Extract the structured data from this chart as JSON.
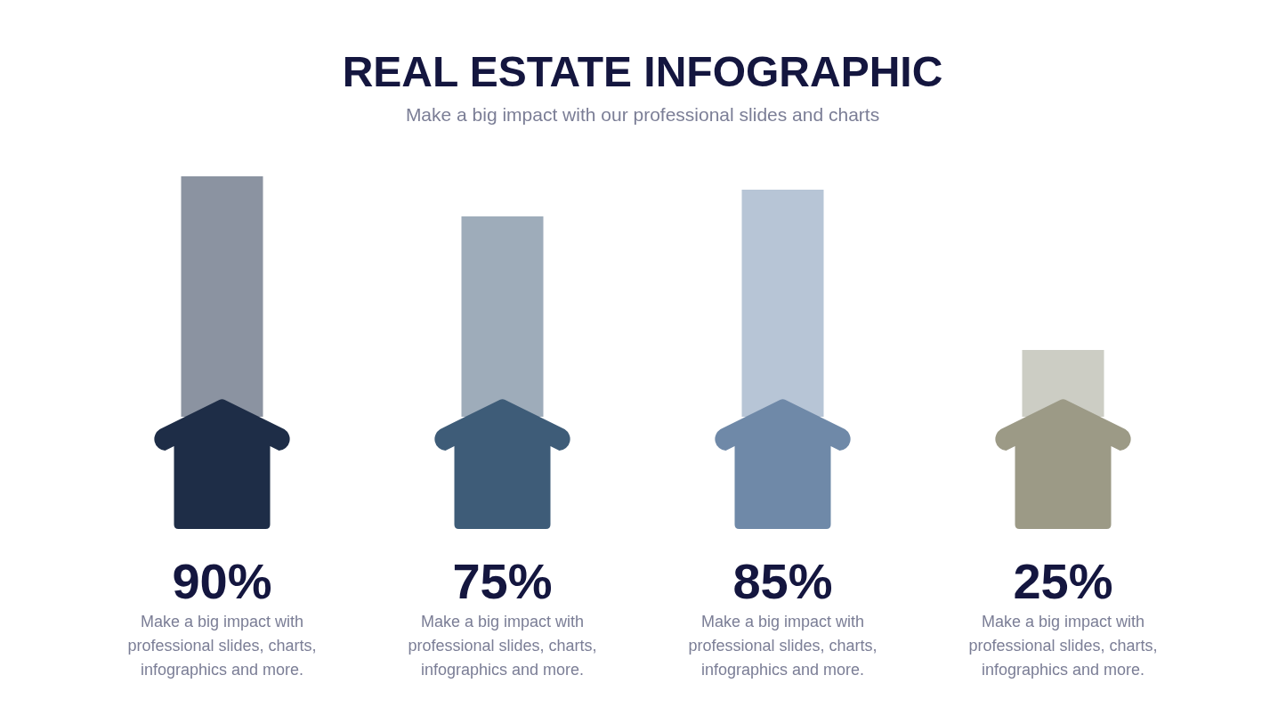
{
  "chart_data": {
    "type": "bar",
    "title": "REAL ESTATE INFOGRAPHIC",
    "subtitle": "Make a big impact with our professional slides and charts",
    "categories": [
      "Make a big impact with professional slides, charts, infographics and more.",
      "Make a big impact with professional slides, charts, infographics and more.",
      "Make a big impact with professional slides, charts, infographics and more.",
      "Make a big impact with professional slides, charts, infographics and more."
    ],
    "values": [
      90,
      75,
      85,
      25
    ],
    "colors": [
      "#8b93a1",
      "#9eacba",
      "#b7c5d6",
      "#cccdc4"
    ],
    "value_labels": [
      "90%",
      "75%",
      "85%",
      "25%"
    ]
  }
}
